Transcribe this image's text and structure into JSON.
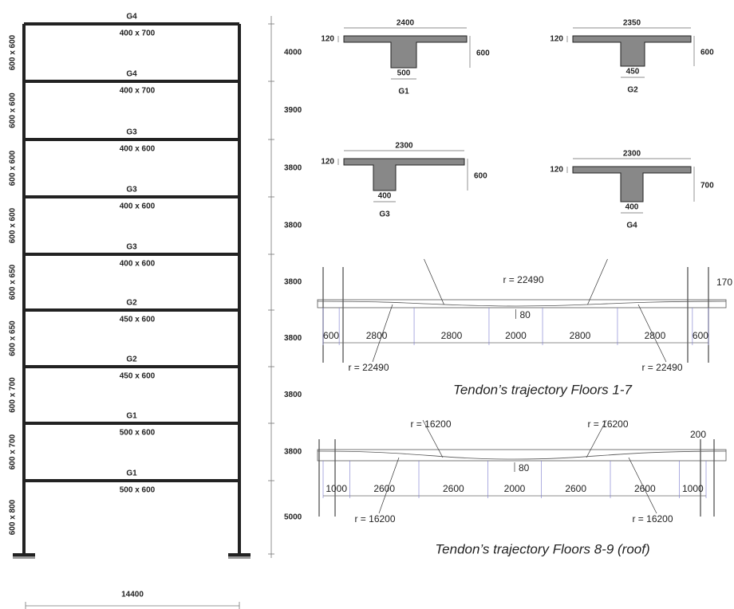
{
  "frame": {
    "beams": [
      {
        "name": "G4",
        "size": "400 x 700"
      },
      {
        "name": "G4",
        "size": "400 x 700"
      },
      {
        "name": "G3",
        "size": "400 x 600"
      },
      {
        "name": "G3",
        "size": "400 x 600"
      },
      {
        "name": "G3",
        "size": "400 x 600"
      },
      {
        "name": "G2",
        "size": "450 x 600"
      },
      {
        "name": "G2",
        "size": "450 x 600"
      },
      {
        "name": "G1",
        "size": "500 x 600"
      },
      {
        "name": "G1",
        "size": "500 x 600"
      }
    ],
    "columns": [
      "600 x 600",
      "600 x 600",
      "600 x 600",
      "600 x 600",
      "600 x 650",
      "600 x 650",
      "600 x 700",
      "600 x 700",
      "600 x 800"
    ],
    "story_heights": [
      4000,
      3900,
      3800,
      3800,
      3800,
      3800,
      3800,
      3800,
      5000
    ],
    "span": 14400
  },
  "sections": [
    {
      "name": "G1",
      "flange_width": 2400,
      "flange_thickness": 120,
      "depth": 600,
      "web_width": 500
    },
    {
      "name": "G2",
      "flange_width": 2350,
      "flange_thickness": 120,
      "depth": 600,
      "web_width": 450
    },
    {
      "name": "G3",
      "flange_width": 2300,
      "flange_thickness": 120,
      "depth": 600,
      "web_width": 400
    },
    {
      "name": "G4",
      "flange_width": 2300,
      "flange_thickness": 120,
      "depth": 700,
      "web_width": 400
    }
  ],
  "tendons": [
    {
      "top_labels": [
        "r = 22490"
      ],
      "side_label": 170,
      "sag_label": 80,
      "dims": [
        600,
        2800,
        2800,
        2000,
        2800,
        2800,
        600
      ],
      "bottom_labels": [
        "r = 22490",
        "r = 22490"
      ],
      "caption": "Tendon’s trajectory Floors 1-7"
    },
    {
      "top_labels": [
        "r = 16200",
        "r = 16200"
      ],
      "side_label": 200,
      "sag_label": 80,
      "dims": [
        1000,
        2600,
        2600,
        2000,
        2600,
        2600,
        1000
      ],
      "bottom_labels": [
        "r = 16200",
        "r = 16200"
      ],
      "caption": "Tendon’s trajectory Floors 8-9 (roof)"
    }
  ]
}
